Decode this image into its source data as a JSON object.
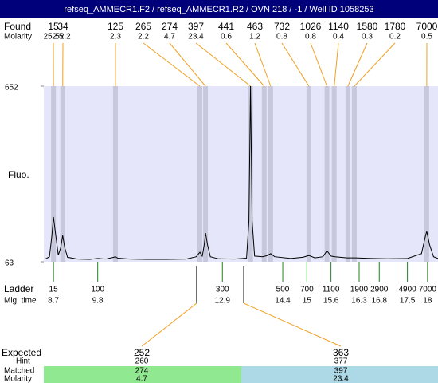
{
  "header": {
    "title": "refseq_AMMECR1.F2 / refseq_AMMECR1.R2 / OVN 218 / -1 / Well ID 1058253"
  },
  "chart_data": {
    "type": "line",
    "y_label": "Fluo.",
    "xlim": [
      8.46,
      18.26
    ],
    "ylim": [
      63,
      652
    ],
    "yticks": [
      63,
      652
    ],
    "color": "#000000",
    "background": "#e6e6fa",
    "x": [
      8.5,
      8.6,
      8.66,
      8.7,
      8.75,
      8.82,
      8.88,
      8.93,
      8.98,
      9.05,
      9.3,
      9.6,
      9.8,
      10.0,
      10.2,
      10.24,
      10.3,
      10.6,
      11.0,
      11.5,
      12.0,
      12.25,
      12.34,
      12.4,
      12.45,
      12.48,
      12.53,
      12.6,
      12.8,
      13.2,
      13.5,
      13.56,
      13.6,
      13.64,
      13.7,
      13.9,
      14.0,
      14.1,
      14.2,
      14.6,
      14.9,
      15.05,
      15.2,
      15.4,
      15.5,
      15.6,
      15.7,
      16.0,
      16.2,
      16.6,
      17.0,
      17.5,
      17.85,
      17.95,
      17.98,
      18.05,
      18.15,
      18.26
    ],
    "values": [
      72,
      80,
      150,
      213,
      160,
      85,
      110,
      151,
      110,
      78,
      72,
      71,
      74,
      72,
      78,
      80,
      75,
      72,
      71,
      71,
      72,
      80,
      95,
      82,
      120,
      159,
      120,
      80,
      73,
      72,
      75,
      200,
      652,
      200,
      82,
      80,
      83,
      90,
      80,
      74,
      78,
      84,
      76,
      80,
      100,
      82,
      80,
      76,
      76,
      74,
      73,
      74,
      90,
      150,
      165,
      120,
      80,
      74
    ],
    "found": {
      "label": "Found",
      "molarity_label": "Molarity",
      "sizes": [
        15,
        34,
        125,
        265,
        274,
        397,
        441,
        463,
        732,
        1026,
        1140,
        1580,
        1780,
        7000
      ],
      "molarity": [
        252.5,
        52.2,
        2.3,
        2.2,
        4.7,
        23.4,
        0.6,
        1.2,
        0.8,
        0.8,
        0.4,
        0.3,
        0.2,
        0.5
      ],
      "times": [
        8.7,
        8.93,
        10.24,
        12.34,
        12.48,
        13.6,
        13.94,
        14.1,
        15.05,
        15.5,
        15.68,
        16.02,
        16.18,
        17.98
      ],
      "band_color": "#c8c8dc",
      "line_color": "#f0a020"
    },
    "ladder": {
      "label": "Ladder",
      "time_label": "Mig. time",
      "sizes": [
        15,
        100,
        300,
        500,
        700,
        1100,
        1900,
        2900,
        4900,
        7000
      ],
      "times": [
        8.7,
        9.8,
        12.9,
        14.4,
        15,
        15.6,
        16.3,
        16.8,
        17.5,
        18
      ],
      "color": "#208020"
    },
    "expected": {
      "label": "Expected",
      "hint_label": "Hint",
      "matched_label": "Matched",
      "molarity_label": "Molarity",
      "sizes": [
        252,
        363
      ],
      "hints": [
        260,
        377
      ],
      "matched": [
        274,
        397
      ],
      "molarity": [
        4.7,
        23.4
      ],
      "times": [
        12.26,
        13.43
      ],
      "colors": [
        "#90e890",
        "#add8e6"
      ]
    }
  }
}
